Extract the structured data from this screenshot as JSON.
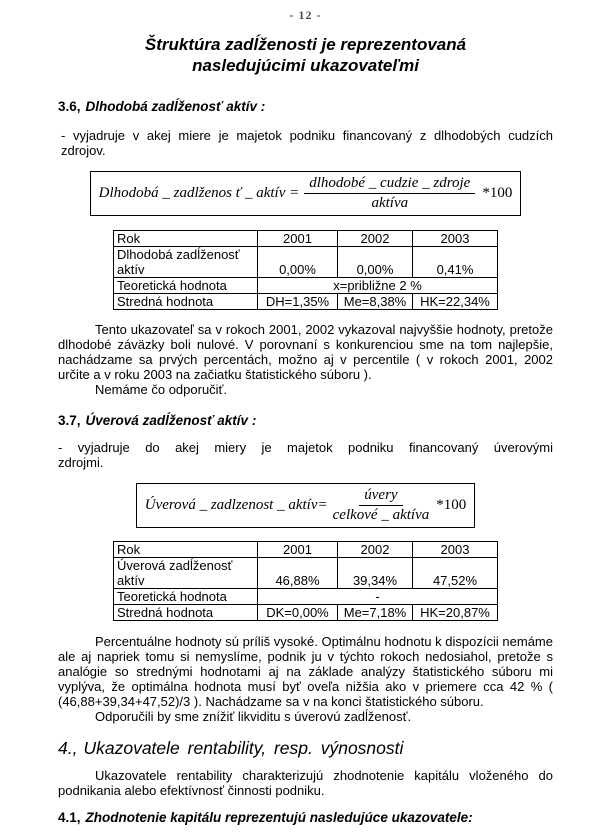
{
  "colors": {
    "background": "#ffffff",
    "text": "#000000",
    "table_border": "#000000",
    "page_number": "#4a4a4a"
  },
  "header": {
    "page_number": "- 12 -",
    "title_line1": "Štruktúra zadĺženosti je reprezentovaná",
    "title_line2": "nasledujúcimi ukazovateľmi"
  },
  "section_3_6": {
    "heading_number": "3.6,",
    "heading_text": "Dlhodobá zadĺženosť aktív :",
    "intro_line1": "- vyjadruje v akej miere je majetok podniku financovaný z dlhodobých cudzích",
    "intro_line2": "zdrojov.",
    "formula": {
      "lhs": "Dlhodobá _ zadlženos ť _ aktív =",
      "numerator": "dlhodobé _ cudzie _ zdroje",
      "denominator": "aktíva",
      "multiplier": "*100"
    },
    "table": {
      "header_row": [
        "Rok",
        "2001",
        "2002",
        "2003"
      ],
      "indicator_label": "Dlhodobá zadĺženosť aktív",
      "indicator_values": [
        "0,00%",
        "0,00%",
        "0,41%"
      ],
      "theoretical_label": "Teoretická hodnota",
      "theoretical_value": "x=približne 2 %",
      "mean_label": "Stredná hodnota",
      "mean_values": [
        "DH=1,35%",
        "Me=8,38%",
        "HK=22,34%"
      ]
    },
    "paragraph": "Tento ukazovateľ sa v rokoch 2001, 2002 vykazoval najvyššie hodnoty, pretože dlhodobé záväzky boli nulové. V porovnaní s konkurenciou sme na tom najlepšie, nachádzame sa prvých percentách, možno aj v percentile ( v rokoch 2001, 2002 určite a v roku 2003 na začiatku štatistického súboru ).",
    "recommendation": "Nemáme čo odporučiť."
  },
  "section_3_7": {
    "heading_number": "3.7,",
    "heading_text": "Úverová zadĺženosť aktív :",
    "intro_line1": "- vyjadruje do akej miery je majetok podniku financovaný úverovými",
    "intro_line2": "zdrojmi.",
    "formula": {
      "lhs": "Úverová _ zadlzenost _ aktív=",
      "numerator": "úvery",
      "denominator": "celkové _ aktíva",
      "multiplier": "*100"
    },
    "table": {
      "header_row": [
        "Rok",
        "2001",
        "2002",
        "2003"
      ],
      "indicator_label": "Úverová zadĺženosť aktív",
      "indicator_values": [
        "46,88%",
        "39,34%",
        "47,52%"
      ],
      "theoretical_label": "Teoretická hodnota",
      "theoretical_value": "-",
      "mean_label": "Stredná hodnota",
      "mean_values": [
        "DK=0,00%",
        "Me=7,18%",
        "HK=20,87%"
      ]
    },
    "paragraph": "Percentuálne hodnoty sú príliš vysoké. Optimálnu hodnotu k dispozícii nemáme ale aj napriek tomu si nemyslíme, podnik ju v týchto rokoch nedosiahol, pretože s analógie so strednými hodnotami aj na základe analýzy štatistického súboru mi vyplýva, že optimálna hodnota musí byť oveľa nižšia ako v priemere cca 42 % ( (46,88+39,34+47,52)/3 ). Nachádzame sa v na konci štatistického súboru.",
    "recommendation": "Odporučili by sme znížiť likviditu s úverovú zadĺženosť."
  },
  "section_4": {
    "heading_number": "4.,",
    "heading_text": "Ukazovatele rentability, resp. výnosnosti",
    "paragraph": "Ukazovatele rentability charakterizujú zhodnotenie kapitálu vloženého do podnikania alebo efektívnosť činnosti podniku."
  },
  "section_4_1": {
    "heading_number": "4.1,",
    "heading_text": "Zhodnotenie kapitálu reprezentujú nasledujúce ukazovatele:"
  }
}
